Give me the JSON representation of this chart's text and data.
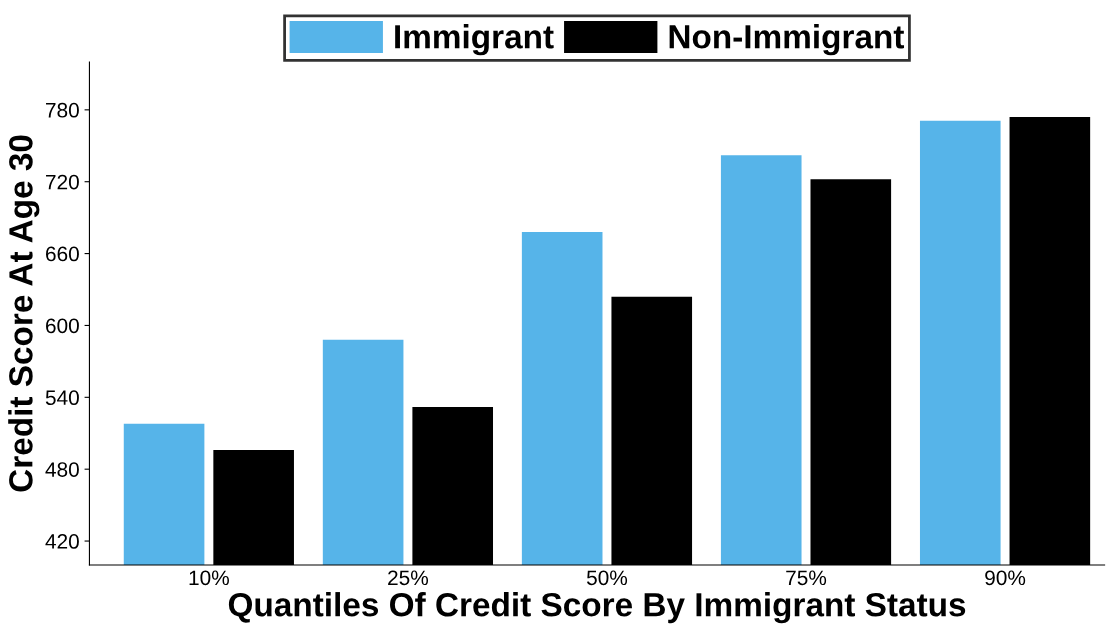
{
  "chart_data": {
    "type": "bar",
    "xlabel": "Quantiles Of Credit Score By Immigrant Status",
    "ylabel": "Credit Score At Age 30",
    "categories": [
      "10%",
      "25%",
      "50%",
      "75%",
      "90%"
    ],
    "series": [
      {
        "name": "Immigrant",
        "color": "#56b4e9",
        "values": [
          518,
          588,
          678,
          742,
          771
        ]
      },
      {
        "name": "Non-Immigrant",
        "color": "#000000",
        "values": [
          496,
          532,
          624,
          722,
          774
        ]
      }
    ],
    "ylim": [
      400,
      820
    ],
    "yticks": [
      420,
      480,
      540,
      600,
      660,
      720,
      780
    ],
    "grid": false,
    "legend": "top"
  }
}
